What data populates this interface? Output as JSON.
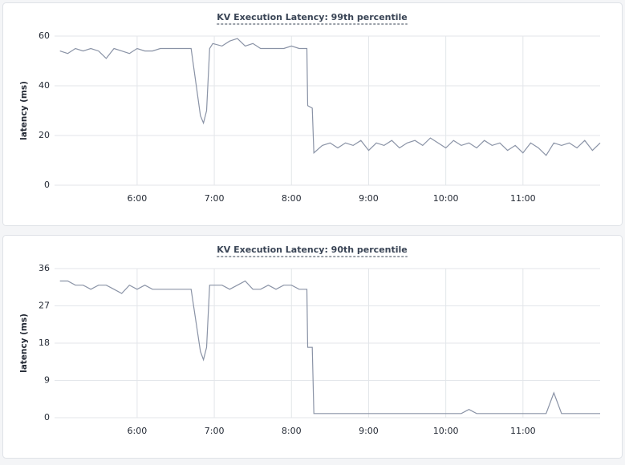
{
  "chart_data": [
    {
      "type": "line",
      "title": "KV Execution Latency: 99th percentile",
      "y_label": "latency (ms)",
      "x": [
        5.0,
        5.1,
        5.2,
        5.3,
        5.4,
        5.5,
        5.6,
        5.7,
        5.8,
        5.9,
        6.0,
        6.1,
        6.2,
        6.3,
        6.4,
        6.5,
        6.6,
        6.7,
        6.82,
        6.86,
        6.9,
        6.94,
        6.98,
        7.1,
        7.2,
        7.3,
        7.4,
        7.5,
        7.6,
        7.7,
        7.8,
        7.9,
        8.0,
        8.1,
        8.2,
        8.21,
        8.27,
        8.29,
        8.4,
        8.5,
        8.6,
        8.7,
        8.8,
        8.9,
        9.0,
        9.1,
        9.2,
        9.3,
        9.4,
        9.5,
        9.6,
        9.7,
        9.8,
        9.9,
        10.0,
        10.1,
        10.2,
        10.3,
        10.4,
        10.5,
        10.6,
        10.7,
        10.8,
        10.9,
        11.0,
        11.1,
        11.2,
        11.3,
        11.4,
        11.5,
        11.6,
        11.7,
        11.8,
        11.9,
        12.0
      ],
      "series": [
        {
          "color": "#8a93a6",
          "values": [
            54,
            53,
            55,
            54,
            55,
            54,
            51,
            55,
            54,
            53,
            55,
            54,
            54,
            55,
            55,
            55,
            55,
            55,
            28,
            25,
            30,
            55,
            57,
            56,
            58,
            59,
            56,
            57,
            55,
            55,
            55,
            55,
            56,
            55,
            55,
            32,
            31,
            13,
            16,
            17,
            15,
            17,
            16,
            18,
            14,
            17,
            16,
            18,
            15,
            17,
            18,
            16,
            19,
            17,
            15,
            18,
            16,
            17,
            15,
            18,
            16,
            17,
            14,
            16,
            13,
            17,
            15,
            12,
            17,
            16,
            17,
            15,
            18,
            14,
            17
          ]
        }
      ],
      "xlim": [
        4.93,
        12.0
      ],
      "ylim": [
        0,
        60
      ],
      "yticks": [
        0,
        20,
        40,
        60
      ],
      "xticks": [
        {
          "value": 6,
          "label": "6:00"
        },
        {
          "value": 7,
          "label": "7:00"
        },
        {
          "value": 8,
          "label": "8:00"
        },
        {
          "value": 9,
          "label": "9:00"
        },
        {
          "value": 10,
          "label": "10:00"
        },
        {
          "value": 11,
          "label": "11:00"
        }
      ],
      "grid": true
    },
    {
      "type": "line",
      "title": "KV Execution Latency: 90th percentile",
      "y_label": "latency (ms)",
      "x": [
        5.0,
        5.1,
        5.2,
        5.3,
        5.4,
        5.5,
        5.6,
        5.7,
        5.8,
        5.9,
        6.0,
        6.1,
        6.2,
        6.3,
        6.4,
        6.5,
        6.6,
        6.7,
        6.82,
        6.86,
        6.9,
        6.94,
        6.98,
        7.1,
        7.2,
        7.3,
        7.4,
        7.5,
        7.6,
        7.7,
        7.8,
        7.9,
        8.0,
        8.1,
        8.2,
        8.21,
        8.27,
        8.29,
        8.4,
        8.5,
        8.6,
        8.7,
        8.8,
        8.9,
        9.0,
        9.1,
        9.2,
        9.3,
        9.4,
        9.5,
        9.6,
        9.7,
        9.8,
        9.9,
        10.0,
        10.1,
        10.2,
        10.3,
        10.4,
        10.5,
        10.6,
        10.7,
        10.8,
        10.9,
        11.0,
        11.1,
        11.2,
        11.3,
        11.4,
        11.5,
        11.6,
        11.7,
        11.8,
        11.9,
        12.0
      ],
      "series": [
        {
          "color": "#8a93a6",
          "values": [
            33,
            33,
            32,
            32,
            31,
            32,
            32,
            31,
            30,
            32,
            31,
            32,
            31,
            31,
            31,
            31,
            31,
            31,
            16,
            14,
            17,
            32,
            32,
            32,
            31,
            32,
            33,
            31,
            31,
            32,
            31,
            32,
            32,
            31,
            31,
            17,
            17,
            1,
            1,
            1,
            1,
            1,
            1,
            1,
            1,
            1,
            1,
            1,
            1,
            1,
            1,
            1,
            1,
            1,
            1,
            1,
            1,
            2,
            1,
            1,
            1,
            1,
            1,
            1,
            1,
            1,
            1,
            1,
            6,
            1,
            1,
            1,
            1,
            1,
            1
          ]
        }
      ],
      "xlim": [
        4.93,
        12.0
      ],
      "ylim": [
        0,
        36
      ],
      "yticks": [
        0,
        9,
        18,
        27,
        36
      ],
      "xticks": [
        {
          "value": 6,
          "label": "6:00"
        },
        {
          "value": 7,
          "label": "7:00"
        },
        {
          "value": 8,
          "label": "8:00"
        },
        {
          "value": 9,
          "label": "9:00"
        },
        {
          "value": 10,
          "label": "10:00"
        },
        {
          "value": 11,
          "label": "11:00"
        }
      ],
      "grid": true
    }
  ]
}
